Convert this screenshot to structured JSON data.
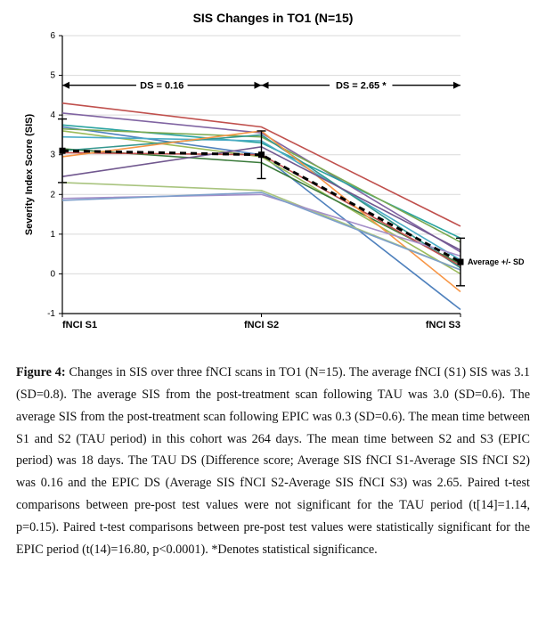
{
  "chart": {
    "type": "line",
    "title": "SIS Changes in TO1 (N=15)",
    "ylabel": "Severity Index Score (SIS)",
    "ylim": [
      -1,
      6
    ],
    "ytick_step": 1,
    "x_categories": [
      "fNCI S1",
      "fNCI S2",
      "fNCI S3"
    ],
    "background_color": "#ffffff",
    "grid_color": "#d9d9d9",
    "axis_color": "#000000",
    "avg_label": "Average +/- SD",
    "annotations": [
      {
        "label": "DS = 0.16",
        "segment": 0
      },
      {
        "label": "DS = 2.65 *",
        "segment": 1
      }
    ],
    "average": {
      "values": [
        3.1,
        3.0,
        0.3
      ],
      "sd": [
        0.8,
        0.6,
        0.6
      ],
      "color": "#000000",
      "dash": "7,5",
      "width": 3
    },
    "series": [
      {
        "values": [
          4.3,
          3.7,
          1.2
        ],
        "color": "#c0504d"
      },
      {
        "values": [
          4.05,
          3.55,
          0.55
        ],
        "color": "#8064a2"
      },
      {
        "values": [
          3.75,
          3.3,
          0.9
        ],
        "color": "#2aa3a0"
      },
      {
        "values": [
          3.7,
          3.0,
          -0.9
        ],
        "color": "#4f81bd"
      },
      {
        "values": [
          3.65,
          3.45,
          0.8
        ],
        "color": "#7aa951"
      },
      {
        "values": [
          3.6,
          2.95,
          0.0
        ],
        "color": "#9bbb59"
      },
      {
        "values": [
          3.45,
          3.35,
          0.35
        ],
        "color": "#4bacc6"
      },
      {
        "values": [
          3.15,
          2.8,
          0.25
        ],
        "color": "#3a7a3a"
      },
      {
        "values": [
          3.1,
          3.5,
          0.15
        ],
        "color": "#35978f"
      },
      {
        "values": [
          3.05,
          3.0,
          0.2
        ],
        "color": "#c0504d"
      },
      {
        "values": [
          2.95,
          3.6,
          -0.45
        ],
        "color": "#f79646"
      },
      {
        "values": [
          2.45,
          3.2,
          0.6
        ],
        "color": "#71588f"
      },
      {
        "values": [
          2.3,
          2.1,
          0.1
        ],
        "color": "#a9c47f"
      },
      {
        "values": [
          1.9,
          2.0,
          0.45
        ],
        "color": "#a48fc8"
      },
      {
        "values": [
          1.85,
          2.05,
          0.1
        ],
        "color": "#7d9fcb"
      }
    ]
  },
  "caption": {
    "fig_label": "Figure 4:",
    "text": "Changes in SIS over three fNCI scans in TO1 (N=15). The average fNCI (S1) SIS was 3.1 (SD=0.8). The average SIS from the post-treatment scan following TAU was 3.0 (SD=0.6). The average SIS from the post-treatment scan following EPIC was 0.3 (SD=0.6). The mean time between S1 and S2 (TAU period) in this cohort was 264 days. The mean time between S2 and S3 (EPIC period) was 18 days. The TAU DS (Difference score; Average SIS fNCI S1-Average SIS fNCI S2) was 0.16 and the EPIC DS (Average SIS fNCI S2-Average SIS fNCI S3) was 2.65. Paired t-test comparisons between pre-post test values were not significant for the TAU period (t[14]=1.14, p=0.15). Paired t-test comparisons between pre-post test values were statistically significant for the EPIC period (t(14)=16.80, p<0.0001). *Denotes statistical significance."
  }
}
